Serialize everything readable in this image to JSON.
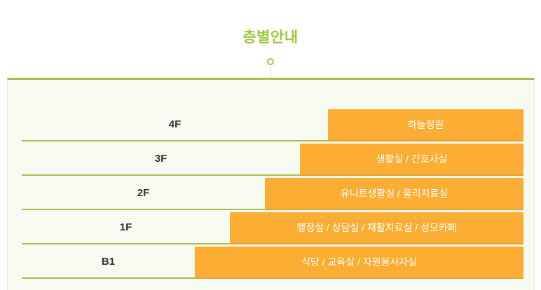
{
  "title": "층별안내",
  "colors": {
    "accent_green": "#9cc93f",
    "line_green": "#a9bf54",
    "orange": "#fcad33",
    "orange_edge": "#dfa438",
    "panel_bg": "#f7faf0",
    "panel_border": "#e6eadb",
    "label_color": "#333333",
    "room_text": "#ffffff"
  },
  "floors": [
    {
      "label": "4F",
      "rooms": "하늘정원"
    },
    {
      "label": "3F",
      "rooms": "생활실 / 간호사실"
    },
    {
      "label": "2F",
      "rooms": "유니트생활실 / 물리치료실"
    },
    {
      "label": "1F",
      "rooms": "행정실 / 상담실 / 재활치료실 / 성모카페"
    },
    {
      "label": "B1",
      "rooms": "식당 / 교육실 / 자원봉사자실"
    }
  ]
}
